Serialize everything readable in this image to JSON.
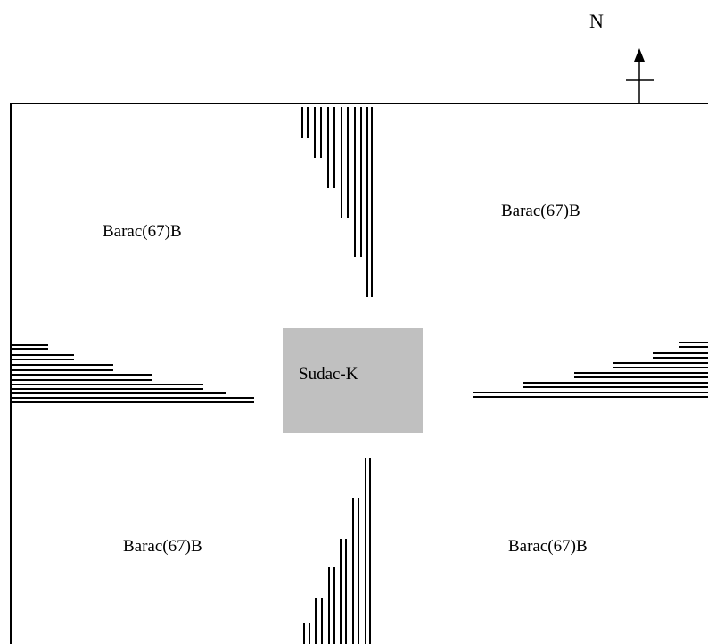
{
  "north_arrow": {
    "label": "N",
    "icon": "north-arrow-icon"
  },
  "central_zone": {
    "label": "Sudac-K",
    "fill_color": "#c0c0c0"
  },
  "quadrants": {
    "northwest": {
      "label": "Barac(67)B"
    },
    "northeast": {
      "label": "Barac(67)B"
    },
    "southwest": {
      "label": "Barac(67)B"
    },
    "southeast": {
      "label": "Barac(67)B"
    }
  },
  "colors": {
    "line": "#000000",
    "background": "#ffffff"
  }
}
